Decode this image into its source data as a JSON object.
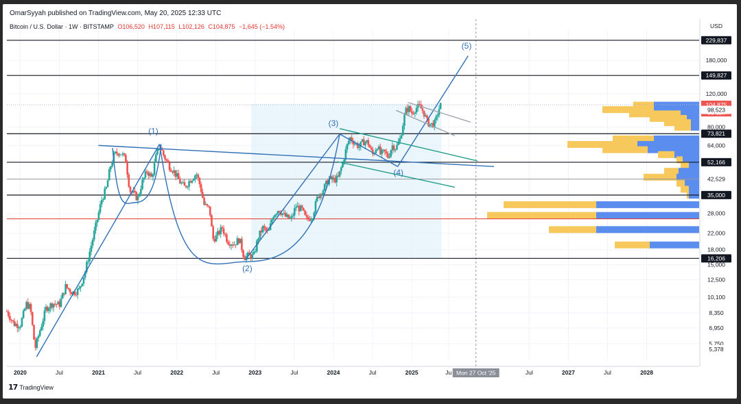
{
  "header": {
    "publisher": "OmarSyyah published on TradingView.com, May 20, 2025 12:33 UTC",
    "symbol": "Bitcoin / U.S. Dollar · 1W · BITSTAMP",
    "open": "O106,520",
    "high": "H107,115",
    "low": "L102,126",
    "close": "C104,875",
    "change": "−1,645 (−1.54%)"
  },
  "footer": {
    "brand": "TradingView"
  },
  "colors": {
    "up": "#26a69a",
    "down": "#ef5350",
    "level_line": "#131722",
    "red_line": "#e0342c",
    "trend": "#2e6fb7",
    "channel": "#1e9e8a",
    "vp_buy": "#5b8def",
    "vp_sell": "#f7c85c",
    "box": "#e4f1fb",
    "tag_dark": "#131722",
    "tag_last": "#ef5350",
    "tag_grey": "#8a8e97"
  },
  "chart_data": {
    "type": "candlestick",
    "title": "Bitcoin / U.S. Dollar · 1W · BITSTAMP",
    "y_scale": "log",
    "ylim": [
      4700,
      260000
    ],
    "x_range": [
      "2019-11-01",
      "2028-09-01"
    ],
    "currency": "USD",
    "y_ticks": [
      "180,000",
      "120,000",
      "80,000",
      "64,000",
      "28,000",
      "22,000",
      "18,000",
      "15,000",
      "12,500",
      "10,100",
      "8,350",
      "6,950",
      "5,750"
    ],
    "y_tick_values": [
      180000,
      120000,
      80000,
      64000,
      28000,
      22000,
      18000,
      15000,
      12500,
      10100,
      8350,
      6950,
      5750
    ],
    "x_ticks": [
      {
        "label": "2020",
        "t": 2020.0,
        "bold": true
      },
      {
        "label": "Jul",
        "t": 2020.5,
        "bold": false
      },
      {
        "label": "2021",
        "t": 2021.0,
        "bold": true
      },
      {
        "label": "Jul",
        "t": 2021.5,
        "bold": false
      },
      {
        "label": "2022",
        "t": 2022.0,
        "bold": true
      },
      {
        "label": "Jul",
        "t": 2022.5,
        "bold": false
      },
      {
        "label": "2023",
        "t": 2023.0,
        "bold": true
      },
      {
        "label": "Jul",
        "t": 2023.5,
        "bold": false
      },
      {
        "label": "2024",
        "t": 2024.0,
        "bold": true
      },
      {
        "label": "Jul",
        "t": 2024.5,
        "bold": false
      },
      {
        "label": "2025",
        "t": 2025.0,
        "bold": true
      },
      {
        "label": "Ju",
        "t": 2025.47,
        "bold": false
      },
      {
        "label": "Jul",
        "t": 2026.5,
        "bold": false
      },
      {
        "label": "2027",
        "t": 2027.0,
        "bold": true
      },
      {
        "label": "Jul",
        "t": 2027.5,
        "bold": false
      },
      {
        "label": "2028",
        "t": 2028.0,
        "bold": true
      }
    ],
    "cursor": {
      "label": "Mon 27 Oct '25",
      "t": 2025.82
    },
    "horizontal_levels": [
      {
        "price": 229837,
        "label": "229,837",
        "style": "dark"
      },
      {
        "price": 149827,
        "label": "149,827",
        "style": "dark"
      },
      {
        "price": 73821,
        "label": "73,821",
        "style": "dark"
      },
      {
        "price": 52166,
        "label": "52,166",
        "style": "dark"
      },
      {
        "price": 35000,
        "label": "35,000",
        "style": "dark"
      },
      {
        "price": 16206,
        "label": "16,206",
        "style": "dark"
      },
      {
        "price": 26200,
        "label": "",
        "style": "red"
      },
      {
        "price": 42529,
        "label": "42,529",
        "style": "grey"
      },
      {
        "price": 104875,
        "label": "104,875",
        "style": "last"
      }
    ],
    "price_tags_extra": [
      {
        "price": 98523,
        "label": "98,523"
      },
      {
        "price": 5378,
        "label": "5,378"
      }
    ],
    "countdown": "5d 12h",
    "wave_labels": [
      {
        "label": "(1)",
        "t": 2021.7,
        "price": 73500
      },
      {
        "label": "(2)",
        "t": 2022.9,
        "price": 13900
      },
      {
        "label": "(3)",
        "t": 2024.0,
        "price": 81000
      },
      {
        "label": "(4)",
        "t": 2024.83,
        "price": 44500
      },
      {
        "label": "(5)",
        "t": 2025.7,
        "price": 208000
      }
    ],
    "trendlines": [
      {
        "name": "impulse-1",
        "from": [
          2020.21,
          4900
        ],
        "to": [
          2021.78,
          65000
        ],
        "color": "trend"
      },
      {
        "name": "wave-3-up",
        "from": [
          2022.88,
          16000
        ],
        "to": [
          2024.08,
          73500
        ],
        "color": "trend"
      },
      {
        "name": "wave-3-down",
        "from": [
          2024.08,
          73500
        ],
        "to": [
          2024.82,
          49500
        ],
        "color": "trend"
      },
      {
        "name": "wave-5-up",
        "from": [
          2024.82,
          49500
        ],
        "to": [
          2025.72,
          190000
        ],
        "color": "trend"
      },
      {
        "name": "long-resistance",
        "from": [
          2021.0,
          64000
        ],
        "to": [
          2026.05,
          49500
        ],
        "color": "trend"
      },
      {
        "name": "channel-upper",
        "from": [
          2024.08,
          78500
        ],
        "to": [
          2025.84,
          53000
        ],
        "color": "channel"
      },
      {
        "name": "channel-lower",
        "from": [
          2024.05,
          52500
        ],
        "to": [
          2025.55,
          38500
        ],
        "color": "channel"
      },
      {
        "name": "flag-upper",
        "from": [
          2024.95,
          108000
        ],
        "to": [
          2025.75,
          85000
        ],
        "color": "grey"
      },
      {
        "name": "flag-lower",
        "from": [
          2024.8,
          98000
        ],
        "to": [
          2025.55,
          72000
        ],
        "color": "grey"
      }
    ],
    "cup_arcs": [
      {
        "name": "small-cup",
        "from": [
          2021.18,
          62000
        ],
        "bottom": [
          2021.48,
          32000
        ],
        "to": [
          2021.8,
          65000
        ]
      },
      {
        "name": "big-cup",
        "from": [
          2021.78,
          65000
        ],
        "bottom": [
          2022.92,
          15600
        ],
        "to": [
          2024.08,
          73500
        ]
      }
    ],
    "range_box": {
      "from_t": 2022.95,
      "to_t": 2025.38,
      "top": 106000,
      "bottom": 16300
    },
    "volume_profile": [
      {
        "price": 104000,
        "buy": 0.22,
        "sell": 0.1
      },
      {
        "price": 98500,
        "buy": 0.22,
        "sell": 0.25
      },
      {
        "price": 93500,
        "buy": 0.09,
        "sell": 0.25
      },
      {
        "price": 88500,
        "buy": 0.06,
        "sell": 0.18
      },
      {
        "price": 84000,
        "buy": 0.04,
        "sell": 0.13
      },
      {
        "price": 79500,
        "buy": 0.04,
        "sell": 0.08
      },
      {
        "price": 69000,
        "buy": 0.22,
        "sell": 0.2
      },
      {
        "price": 64500,
        "buy": 0.3,
        "sell": 0.34
      },
      {
        "price": 60500,
        "buy": 0.25,
        "sell": 0.22
      },
      {
        "price": 57000,
        "buy": 0.12,
        "sell": 0.08
      },
      {
        "price": 53500,
        "buy": 0.08,
        "sell": 0.03
      },
      {
        "price": 50200,
        "buy": 0.05,
        "sell": 0.04
      },
      {
        "price": 46500,
        "buy": 0.1,
        "sell": 0.07
      },
      {
        "price": 43300,
        "buy": 0.11,
        "sell": 0.16
      },
      {
        "price": 40200,
        "buy": 0.07,
        "sell": 0.04
      },
      {
        "price": 37400,
        "buy": 0.05,
        "sell": 0.04
      },
      {
        "price": 34800,
        "buy": 0.05,
        "sell": 0.01
      },
      {
        "price": 31000,
        "buy": 0.5,
        "sell": 0.45
      },
      {
        "price": 27200,
        "buy": 0.5,
        "sell": 0.53
      },
      {
        "price": 22900,
        "buy": 0.5,
        "sell": 0.23
      },
      {
        "price": 19000,
        "buy": 0.24,
        "sell": 0.17
      }
    ],
    "price_path": [
      [
        2019.83,
        8500
      ],
      [
        2019.92,
        7300
      ],
      [
        2020.0,
        7200
      ],
      [
        2020.08,
        9300
      ],
      [
        2020.13,
        8900
      ],
      [
        2020.19,
        5400
      ],
      [
        2020.25,
        6700
      ],
      [
        2020.33,
        8800
      ],
      [
        2020.42,
        9400
      ],
      [
        2020.5,
        9200
      ],
      [
        2020.58,
        11500
      ],
      [
        2020.67,
        10700
      ],
      [
        2020.75,
        11000
      ],
      [
        2020.83,
        13800
      ],
      [
        2020.9,
        18500
      ],
      [
        2020.96,
        23500
      ],
      [
        2021.04,
        33000
      ],
      [
        2021.1,
        38000
      ],
      [
        2021.15,
        49000
      ],
      [
        2021.2,
        57000
      ],
      [
        2021.25,
        59000
      ],
      [
        2021.3,
        58000
      ],
      [
        2021.35,
        53000
      ],
      [
        2021.4,
        37000
      ],
      [
        2021.45,
        35500
      ],
      [
        2021.5,
        33500
      ],
      [
        2021.55,
        40000
      ],
      [
        2021.62,
        47000
      ],
      [
        2021.68,
        43000
      ],
      [
        2021.73,
        55000
      ],
      [
        2021.78,
        64000
      ],
      [
        2021.83,
        57000
      ],
      [
        2021.9,
        50000
      ],
      [
        2021.96,
        47000
      ],
      [
        2022.04,
        41000
      ],
      [
        2022.1,
        38500
      ],
      [
        2022.17,
        42000
      ],
      [
        2022.25,
        45500
      ],
      [
        2022.3,
        39000
      ],
      [
        2022.35,
        31000
      ],
      [
        2022.42,
        29500
      ],
      [
        2022.46,
        20500
      ],
      [
        2022.5,
        21000
      ],
      [
        2022.58,
        23500
      ],
      [
        2022.65,
        20000
      ],
      [
        2022.73,
        19300
      ],
      [
        2022.8,
        20500
      ],
      [
        2022.86,
        16400
      ],
      [
        2022.92,
        16800
      ],
      [
        2022.98,
        16600
      ],
      [
        2023.04,
        21000
      ],
      [
        2023.1,
        23500
      ],
      [
        2023.17,
        22000
      ],
      [
        2023.23,
        27500
      ],
      [
        2023.3,
        29500
      ],
      [
        2023.38,
        27000
      ],
      [
        2023.46,
        26000
      ],
      [
        2023.52,
        30500
      ],
      [
        2023.6,
        29200
      ],
      [
        2023.65,
        26000
      ],
      [
        2023.73,
        27000
      ],
      [
        2023.8,
        34500
      ],
      [
        2023.87,
        37500
      ],
      [
        2023.94,
        42500
      ],
      [
        2024.0,
        42000
      ],
      [
        2024.06,
        43000
      ],
      [
        2024.12,
        52000
      ],
      [
        2024.17,
        63000
      ],
      [
        2024.21,
        70500
      ],
      [
        2024.27,
        66000
      ],
      [
        2024.33,
        63000
      ],
      [
        2024.38,
        67000
      ],
      [
        2024.44,
        66500
      ],
      [
        2024.5,
        57000
      ],
      [
        2024.56,
        64000
      ],
      [
        2024.6,
        57500
      ],
      [
        2024.65,
        59000
      ],
      [
        2024.7,
        55500
      ],
      [
        2024.75,
        64000
      ],
      [
        2024.8,
        62000
      ],
      [
        2024.85,
        69000
      ],
      [
        2024.88,
        80000
      ],
      [
        2024.92,
        97000
      ],
      [
        2024.96,
        101000
      ],
      [
        2025.0,
        94500
      ],
      [
        2025.05,
        101000
      ],
      [
        2025.1,
        102500
      ],
      [
        2025.15,
        96500
      ],
      [
        2025.2,
        84500
      ],
      [
        2025.25,
        82500
      ],
      [
        2025.3,
        84000
      ],
      [
        2025.33,
        94500
      ],
      [
        2025.36,
        103500
      ],
      [
        2025.38,
        104875
      ]
    ]
  }
}
